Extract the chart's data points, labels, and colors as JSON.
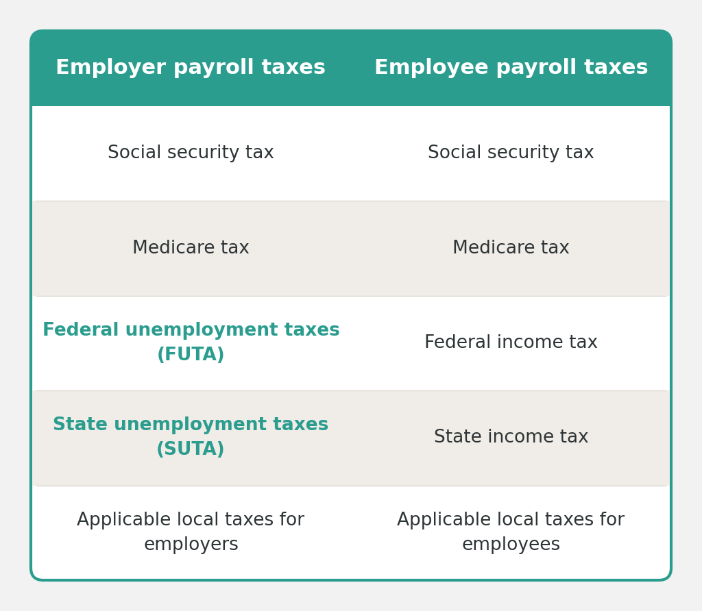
{
  "header_bg_color": "#2a9d8f",
  "header_text_color": "#ffffff",
  "header_left": "Employer payroll taxes",
  "header_right": "Employee payroll taxes",
  "header_fontsize": 22,
  "row_bg_white": "#ffffff",
  "row_bg_light": "#f0ece7",
  "teal_text_color": "#2a9d8f",
  "dark_text_color": "#2d3436",
  "body_fontsize": 19,
  "outer_bg": "#f5f5f5",
  "border_color": "#2a9d8f",
  "fig_bg": "#f0f0f0",
  "rows": [
    {
      "left": "Social security tax",
      "right": "Social security tax",
      "left_bold": false,
      "right_bold": false,
      "left_color": "#2d3436",
      "right_color": "#2d3436",
      "bg": "#ffffff"
    },
    {
      "left": "Medicare tax",
      "right": "Medicare tax",
      "left_bold": false,
      "right_bold": false,
      "left_color": "#2d3436",
      "right_color": "#2d3436",
      "bg": "#f0ece7"
    },
    {
      "left": "Federal unemployment taxes\n(FUTA)",
      "right": "Federal income tax",
      "left_bold": true,
      "right_bold": false,
      "left_color": "#2a9d8f",
      "right_color": "#2d3436",
      "bg": "#ffffff"
    },
    {
      "left": "State unemployment taxes\n(SUTA)",
      "right": "State income tax",
      "left_bold": true,
      "right_bold": false,
      "left_color": "#2a9d8f",
      "right_color": "#2d3436",
      "bg": "#f0ece7"
    },
    {
      "left": "Applicable local taxes for\nemployers",
      "right": "Applicable local taxes for\nemployees",
      "left_bold": false,
      "right_bold": false,
      "left_color": "#2d3436",
      "right_color": "#2d3436",
      "bg": "#ffffff"
    }
  ]
}
